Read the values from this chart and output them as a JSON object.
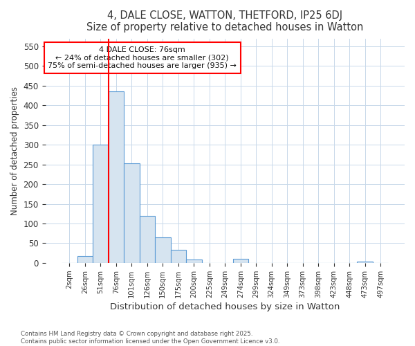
{
  "title": "4, DALE CLOSE, WATTON, THETFORD, IP25 6DJ",
  "subtitle": "Size of property relative to detached houses in Watton",
  "xlabel": "Distribution of detached houses by size in Watton",
  "ylabel": "Number of detached properties",
  "categories": [
    "2sqm",
    "26sqm",
    "51sqm",
    "76sqm",
    "101sqm",
    "126sqm",
    "150sqm",
    "175sqm",
    "200sqm",
    "225sqm",
    "249sqm",
    "274sqm",
    "299sqm",
    "324sqm",
    "349sqm",
    "373sqm",
    "398sqm",
    "423sqm",
    "448sqm",
    "473sqm",
    "497sqm"
  ],
  "values": [
    0,
    18,
    300,
    435,
    253,
    120,
    65,
    33,
    8,
    0,
    0,
    10,
    0,
    0,
    0,
    0,
    0,
    0,
    0,
    4,
    0
  ],
  "bar_color": "#d6e4f0",
  "bar_edge_color": "#5b9bd5",
  "grid_color": "#c8d8ea",
  "vline_x_index": 3,
  "vline_color": "red",
  "annotation_text": "4 DALE CLOSE: 76sqm\n← 24% of detached houses are smaller (302)\n75% of semi-detached houses are larger (935) →",
  "annotation_box_color": "white",
  "annotation_box_edge": "red",
  "ylim": [
    0,
    570
  ],
  "yticks": [
    0,
    50,
    100,
    150,
    200,
    250,
    300,
    350,
    400,
    450,
    500,
    550
  ],
  "footer_line1": "Contains HM Land Registry data © Crown copyright and database right 2025.",
  "footer_line2": "Contains public sector information licensed under the Open Government Licence v3.0.",
  "bg_color": "#ffffff",
  "plot_bg_color": "#ffffff"
}
